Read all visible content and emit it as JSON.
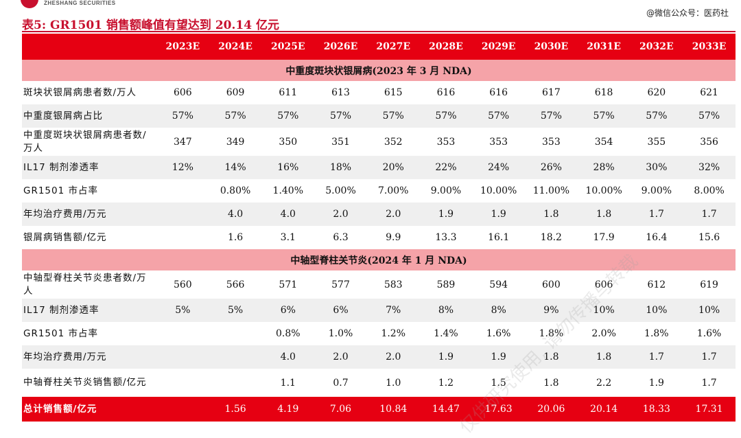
{
  "header": {
    "brand": "ZHESHANG SECURITIES",
    "title": "表5:  GR1501 销售额峰值有望达到 20.14 亿元",
    "source_watermark": "@微信公众号：医药社"
  },
  "table": {
    "columns": [
      "",
      "2023E",
      "2024E",
      "2025E",
      "2026E",
      "2027E",
      "2028E",
      "2029E",
      "2030E",
      "2031E",
      "2032E",
      "2033E"
    ],
    "sections": [
      {
        "title": "中重度斑块状银屑病(2023 年 3 月 NDA)",
        "rows": [
          {
            "label": "斑块状银屑病患者数/万人",
            "values": [
              "606",
              "609",
              "611",
              "613",
              "615",
              "616",
              "616",
              "617",
              "618",
              "620",
              "621"
            ]
          },
          {
            "label": "中重度银屑病占比",
            "values": [
              "57%",
              "57%",
              "57%",
              "57%",
              "57%",
              "57%",
              "57%",
              "57%",
              "57%",
              "57%",
              "57%"
            ]
          },
          {
            "label": "中重度斑块状银屑病患者数/万人",
            "values": [
              "347",
              "349",
              "350",
              "351",
              "352",
              "353",
              "353",
              "353",
              "354",
              "355",
              "356"
            ]
          },
          {
            "label": "IL17 制剂渗透率",
            "values": [
              "12%",
              "14%",
              "16%",
              "18%",
              "20%",
              "22%",
              "24%",
              "26%",
              "28%",
              "30%",
              "32%"
            ]
          },
          {
            "label": "GR1501 市占率",
            "values": [
              "",
              "0.80%",
              "1.40%",
              "5.00%",
              "7.00%",
              "9.00%",
              "10.00%",
              "11.00%",
              "10.00%",
              "9.00%",
              "8.00%"
            ]
          },
          {
            "label": "年均治疗费用/万元",
            "values": [
              "",
              "4.0",
              "4.0",
              "2.0",
              "2.0",
              "1.9",
              "1.9",
              "1.8",
              "1.8",
              "1.7",
              "1.7"
            ]
          },
          {
            "label": "银屑病销售额/亿元",
            "values": [
              "",
              "1.6",
              "3.1",
              "6.3",
              "9.9",
              "13.3",
              "16.1",
              "18.2",
              "17.9",
              "16.4",
              "15.6"
            ]
          }
        ]
      },
      {
        "title": "中轴型脊柱关节炎(2024 年 1 月 NDA)",
        "rows": [
          {
            "label": "中轴型脊柱关节炎患者数/万人",
            "values": [
              "560",
              "566",
              "571",
              "577",
              "583",
              "589",
              "594",
              "600",
              "606",
              "612",
              "619"
            ]
          },
          {
            "label": "IL17 制剂渗透率",
            "values": [
              "5%",
              "5%",
              "6%",
              "6%",
              "7%",
              "8%",
              "8%",
              "9%",
              "10%",
              "10%",
              "10%"
            ]
          },
          {
            "label": "GR1501 市占率",
            "values": [
              "",
              "",
              "0.8%",
              "1.0%",
              "1.2%",
              "1.4%",
              "1.6%",
              "1.8%",
              "2.0%",
              "1.8%",
              "1.6%"
            ]
          },
          {
            "label": "年均治疗费用/万元",
            "values": [
              "",
              "",
              "4.0",
              "2.0",
              "2.0",
              "1.9",
              "1.9",
              "1.8",
              "1.8",
              "1.7",
              "1.7"
            ]
          },
          {
            "label": "中轴脊柱关节炎销售额/亿元",
            "values": [
              "",
              "",
              "1.1",
              "0.7",
              "1.0",
              "1.2",
              "1.5",
              "1.8",
              "2.2",
              "1.9",
              "1.7"
            ]
          }
        ]
      }
    ],
    "total": {
      "label": "总计销售额/亿元",
      "values": [
        "",
        "1.56",
        "4.19",
        "7.06",
        "10.84",
        "14.47",
        "17.63",
        "20.06",
        "20.14",
        "18.33",
        "17.31"
      ]
    }
  },
  "watermark": {
    "text1": "仅供研究使用, 请勿传播与转载"
  }
}
